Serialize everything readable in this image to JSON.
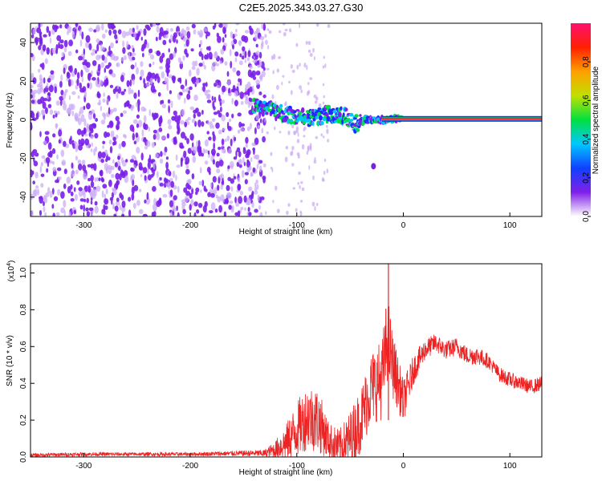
{
  "title": "C2E5.2025.343.03.27.G30",
  "colors": {
    "axis": "#000000",
    "noise": "#7a1fe8",
    "noise_light": "#c9a8f5",
    "snr_line": "#ee2222",
    "ridge": "#ff2020",
    "track": "#20cc60"
  },
  "chart_data": [
    {
      "type": "heatmap",
      "name": "spectrogram",
      "xlabel": "Height of straight line (km)",
      "ylabel": "Frequency (Hz)",
      "xlim": [
        -350,
        130
      ],
      "ylim": [
        -50,
        50
      ],
      "x_ticks": [
        {
          "value": -300,
          "label": "-300"
        },
        {
          "value": -200,
          "label": "-200"
        },
        {
          "value": -100,
          "label": "-100"
        },
        {
          "value": 0,
          "label": "0"
        },
        {
          "value": 100,
          "label": "100"
        }
      ],
      "y_ticks": [
        {
          "value": -40,
          "label": "-40"
        },
        {
          "value": -20,
          "label": "-20"
        },
        {
          "value": 0,
          "label": "0"
        },
        {
          "value": 20,
          "label": "20"
        },
        {
          "value": 40,
          "label": "40"
        }
      ],
      "noise_region_x": [
        -350,
        -130
      ],
      "sparse_noise_region_x": [
        -130,
        -70
      ],
      "signal_ridge": {
        "x": [
          -140,
          -120,
          -100,
          -85,
          -70,
          -55,
          -45,
          -35,
          -20,
          0,
          130
        ],
        "freq": [
          8,
          4,
          2,
          1,
          3,
          2,
          -2,
          0,
          0,
          0.5,
          0.5
        ]
      },
      "isolated_blob": {
        "x": -28,
        "freq": -24
      },
      "colorbar": {
        "label": "Normalized spectral amplitude",
        "range": [
          0,
          1
        ],
        "ticks": [
          {
            "value": 0.0,
            "label": "0.0"
          },
          {
            "value": 0.2,
            "label": "0.2"
          },
          {
            "value": 0.4,
            "label": "0.4"
          },
          {
            "value": 0.6,
            "label": "0.6"
          },
          {
            "value": 0.8,
            "label": "0.8"
          }
        ],
        "colormap": [
          "#ffffff",
          "#8020e8",
          "#1040ff",
          "#00c8ff",
          "#00e040",
          "#c0e000",
          "#ffa000",
          "#ff2000",
          "#ff1070"
        ]
      }
    },
    {
      "type": "line",
      "name": "snr",
      "xlabel": "Height of straight line (km)",
      "ylabel": "SNR (10 * v/v)",
      "y_multiplier": "(x10",
      "y_multiplier_exp": "4",
      "xlim": [
        -350,
        130
      ],
      "ylim": [
        0,
        1.05
      ],
      "x_ticks": [
        {
          "value": -300,
          "label": "-300"
        },
        {
          "value": -200,
          "label": "-200"
        },
        {
          "value": -100,
          "label": "-100"
        },
        {
          "value": 0,
          "label": "0"
        },
        {
          "value": 100,
          "label": "100"
        }
      ],
      "y_ticks": [
        {
          "value": 0.0,
          "label": "0.0"
        },
        {
          "value": 0.2,
          "label": "0.2"
        },
        {
          "value": 0.4,
          "label": "0.4"
        },
        {
          "value": 0.6,
          "label": "0.6"
        },
        {
          "value": 0.8,
          "label": "0.8"
        },
        {
          "value": 1.0,
          "label": "1.0"
        }
      ],
      "series": [
        {
          "name": "SNR",
          "x": [
            -350,
            -300,
            -250,
            -200,
            -150,
            -130,
            -120,
            -110,
            -100,
            -90,
            -80,
            -70,
            -60,
            -50,
            -40,
            -30,
            -20,
            -15,
            -10,
            0,
            10,
            20,
            30,
            40,
            50,
            60,
            70,
            80,
            90,
            100,
            110,
            120,
            130
          ],
          "y": [
            0.01,
            0.015,
            0.015,
            0.015,
            0.02,
            0.02,
            0.04,
            0.08,
            0.15,
            0.22,
            0.2,
            0.09,
            0.05,
            0.1,
            0.2,
            0.38,
            0.42,
            0.65,
            0.5,
            0.3,
            0.48,
            0.58,
            0.62,
            0.58,
            0.6,
            0.55,
            0.55,
            0.52,
            0.45,
            0.42,
            0.4,
            0.38,
            0.4
          ],
          "noise": [
            0.01,
            0.01,
            0.01,
            0.01,
            0.015,
            0.02,
            0.05,
            0.1,
            0.15,
            0.18,
            0.18,
            0.1,
            0.1,
            0.15,
            0.18,
            0.2,
            0.22,
            0.25,
            0.18,
            0.12,
            0.08,
            0.06,
            0.05,
            0.05,
            0.05,
            0.05,
            0.05,
            0.04,
            0.04,
            0.04,
            0.04,
            0.04,
            0.04
          ]
        }
      ],
      "spike": {
        "x": -14,
        "y": 1.05
      }
    }
  ]
}
